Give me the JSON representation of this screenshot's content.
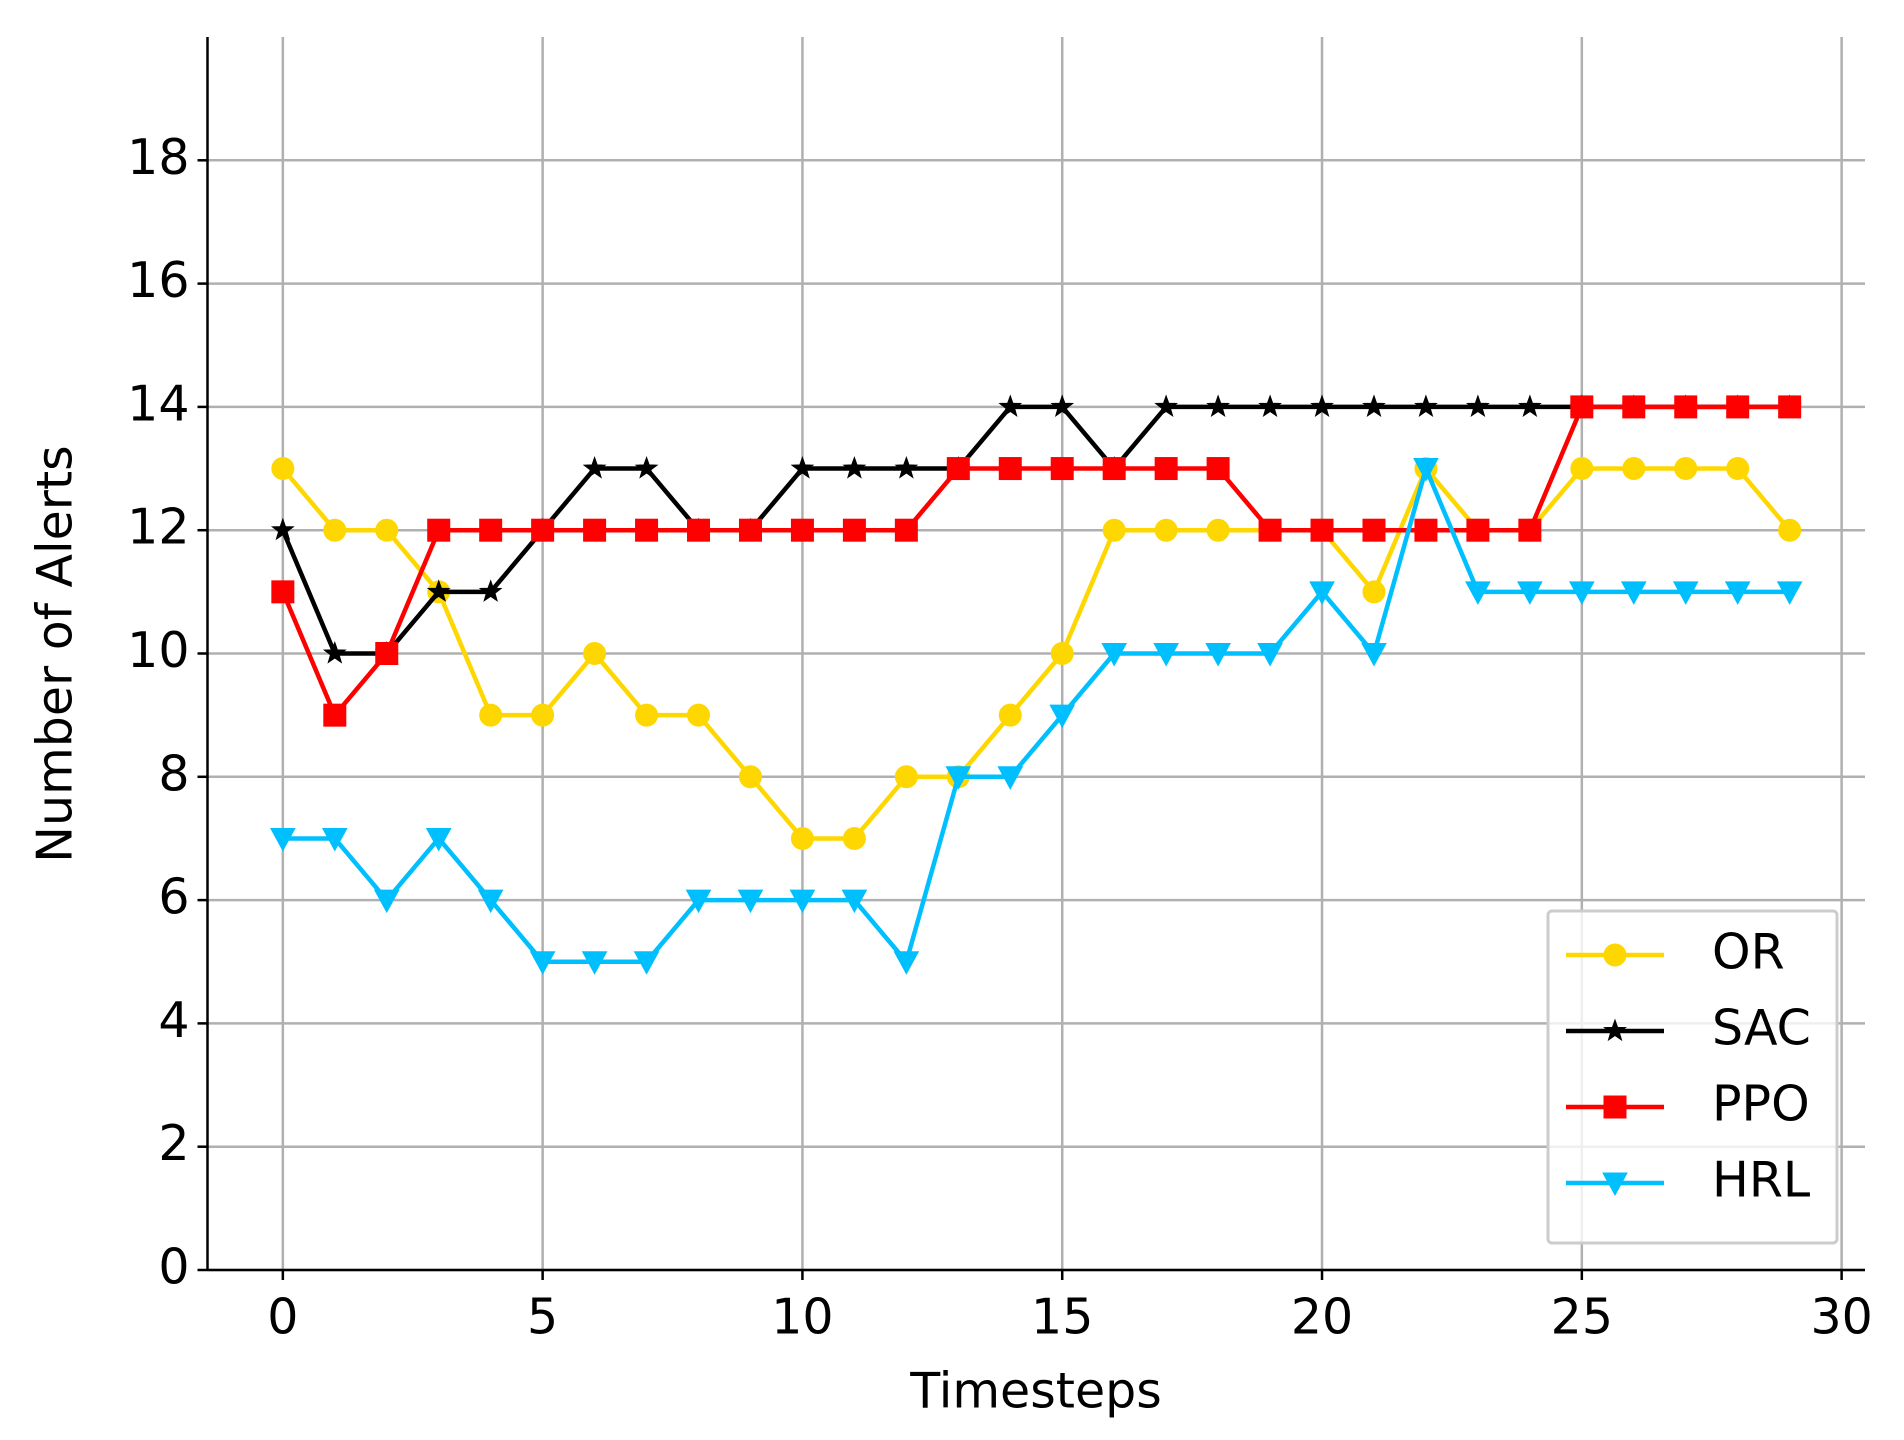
{
  "chart_data": {
    "type": "line",
    "x_label": "Timesteps",
    "y_label": "Number of Alerts",
    "x": [
      0,
      1,
      2,
      3,
      4,
      5,
      6,
      7,
      8,
      9,
      10,
      11,
      12,
      13,
      14,
      15,
      16,
      17,
      18,
      19,
      20,
      21,
      22,
      23,
      24,
      25,
      26,
      27,
      28,
      29
    ],
    "series": [
      {
        "name": "OR",
        "color": "#ffd700",
        "marker": "circle",
        "values": [
          13,
          12,
          12,
          11,
          9,
          9,
          10,
          9,
          9,
          8,
          7,
          7,
          8,
          8,
          9,
          10,
          12,
          12,
          12,
          12,
          12,
          11,
          13,
          12,
          12,
          13,
          13,
          13,
          13,
          12
        ]
      },
      {
        "name": "SAC",
        "color": "#000000",
        "marker": "star",
        "values": [
          12,
          10,
          10,
          11,
          11,
          12,
          13,
          13,
          12,
          12,
          13,
          13,
          13,
          13,
          14,
          14,
          13,
          14,
          14,
          14,
          14,
          14,
          14,
          14,
          14,
          14,
          14,
          14,
          14,
          14
        ]
      },
      {
        "name": "PPO",
        "color": "#ff0000",
        "marker": "square",
        "values": [
          11,
          9,
          10,
          12,
          12,
          12,
          12,
          12,
          12,
          12,
          12,
          12,
          12,
          13,
          13,
          13,
          13,
          13,
          13,
          12,
          12,
          12,
          12,
          12,
          12,
          14,
          14,
          14,
          14,
          14
        ]
      },
      {
        "name": "HRL",
        "color": "#00bfff",
        "marker": "triangle-down",
        "values": [
          7,
          7,
          6,
          7,
          6,
          5,
          5,
          5,
          6,
          6,
          6,
          6,
          5,
          8,
          8,
          9,
          10,
          10,
          10,
          10,
          11,
          10,
          13,
          11,
          11,
          11,
          11,
          11,
          11,
          11
        ]
      }
    ],
    "xlim": [
      -1.45,
      30.45
    ],
    "xticks": [
      0,
      5,
      10,
      15,
      20,
      25,
      30
    ],
    "ylim": [
      0,
      20
    ],
    "yticks": [
      0,
      2,
      4,
      6,
      8,
      10,
      12,
      14,
      16,
      18
    ],
    "grid": true,
    "legend": "lower right"
  }
}
